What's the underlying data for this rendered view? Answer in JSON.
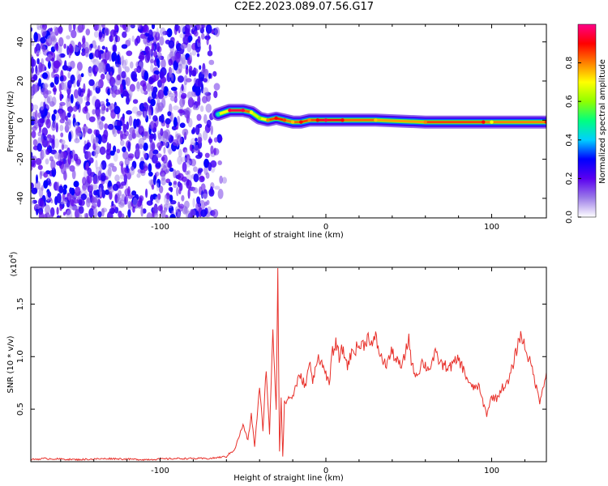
{
  "title": "C2E2.2023.089.07.56.G17",
  "chart_data": [
    {
      "type": "heatmap",
      "xlabel": "Height of straight line (km)",
      "ylabel": "Frequency (Hz)",
      "xlim": [
        -178,
        133
      ],
      "ylim": [
        -50,
        49
      ],
      "xticks": [
        -100,
        0,
        100
      ],
      "yticks": [
        -40,
        -20,
        0,
        20,
        40
      ],
      "noise_region": {
        "x_range": [
          -178,
          -60
        ],
        "y_range": [
          -50,
          49
        ],
        "level": 0.2
      },
      "ridge": {
        "x": [
          -65,
          -58,
          -50,
          -45,
          -40,
          -35,
          -30,
          -25,
          -20,
          -15,
          -10,
          -5,
          0,
          10,
          30,
          60,
          95,
          100,
          133
        ],
        "y": [
          3,
          5,
          5,
          4,
          1,
          0,
          1,
          0,
          -1,
          -1,
          0,
          0,
          0,
          0,
          0,
          -1,
          -1,
          -1,
          -1
        ],
        "amplitude": [
          0.45,
          0.95,
          0.95,
          0.7,
          0.6,
          0.8,
          0.9,
          0.85,
          0.75,
          0.9,
          0.8,
          0.9,
          0.95,
          0.9,
          0.75,
          0.8,
          0.9,
          0.7,
          0.9
        ]
      },
      "colorbar": {
        "label": "Normalized spectral amplitude",
        "range": [
          0,
          1
        ],
        "ticks": [
          0.0,
          0.2,
          0.4,
          0.6,
          0.8
        ],
        "colors": [
          "#ffffff",
          "#9b7be8",
          "#5a00f0",
          "#0000ff",
          "#00d0ff",
          "#00ff80",
          "#90ff00",
          "#ffff00",
          "#ff8000",
          "#ff0000",
          "#ff0088"
        ]
      }
    },
    {
      "type": "line",
      "xlabel": "Height of straight line (km)",
      "ylabel": "SNR (10 * v/v)",
      "scale_label": "(x10",
      "scale_exponent": "4",
      "scale_suffix": ")",
      "xlim": [
        -178,
        133
      ],
      "ylim": [
        0,
        1.85
      ],
      "xticks": [
        -100,
        0,
        100
      ],
      "yticks": [
        0.5,
        1.0,
        1.5
      ],
      "ytick_labels": [
        "0.5",
        "1.0",
        "1.5"
      ],
      "color": "#e8302a",
      "x": [
        -178,
        -170,
        -150,
        -130,
        -110,
        -90,
        -70,
        -60,
        -55,
        -50,
        -47,
        -45,
        -43,
        -40,
        -38,
        -36,
        -34,
        -32,
        -30,
        -29,
        -28,
        -27,
        -26,
        -25,
        -23,
        -20,
        -17,
        -15,
        -12,
        -10,
        -8,
        -6,
        -4,
        -2,
        0,
        2,
        4,
        6,
        8,
        10,
        13,
        16,
        20,
        23,
        26,
        28,
        30,
        33,
        36,
        40,
        43,
        46,
        50,
        52,
        55,
        58,
        62,
        66,
        70,
        75,
        80,
        85,
        88,
        92,
        95,
        97,
        100,
        103,
        106,
        110,
        113,
        117,
        119,
        121,
        123,
        125,
        127,
        129,
        131,
        133
      ],
      "y": [
        0.02,
        0.03,
        0.02,
        0.03,
        0.02,
        0.03,
        0.03,
        0.05,
        0.12,
        0.35,
        0.2,
        0.45,
        0.15,
        0.7,
        0.3,
        0.9,
        0.25,
        1.28,
        0.5,
        1.85,
        0.1,
        0.6,
        0.05,
        0.55,
        0.6,
        0.62,
        0.78,
        0.8,
        0.72,
        0.96,
        0.75,
        0.95,
        1.0,
        0.9,
        0.85,
        0.72,
        1.05,
        1.12,
        1.0,
        1.07,
        0.92,
        1.05,
        1.1,
        1.12,
        1.2,
        1.1,
        1.18,
        1.0,
        0.92,
        1.05,
        0.95,
        0.9,
        1.18,
        0.9,
        0.82,
        0.95,
        0.88,
        1.02,
        0.92,
        0.9,
        0.98,
        0.8,
        0.7,
        0.72,
        0.55,
        0.45,
        0.62,
        0.6,
        0.7,
        0.75,
        0.93,
        1.2,
        1.15,
        1.05,
        0.95,
        0.85,
        0.7,
        0.58,
        0.72,
        0.85
      ]
    }
  ]
}
